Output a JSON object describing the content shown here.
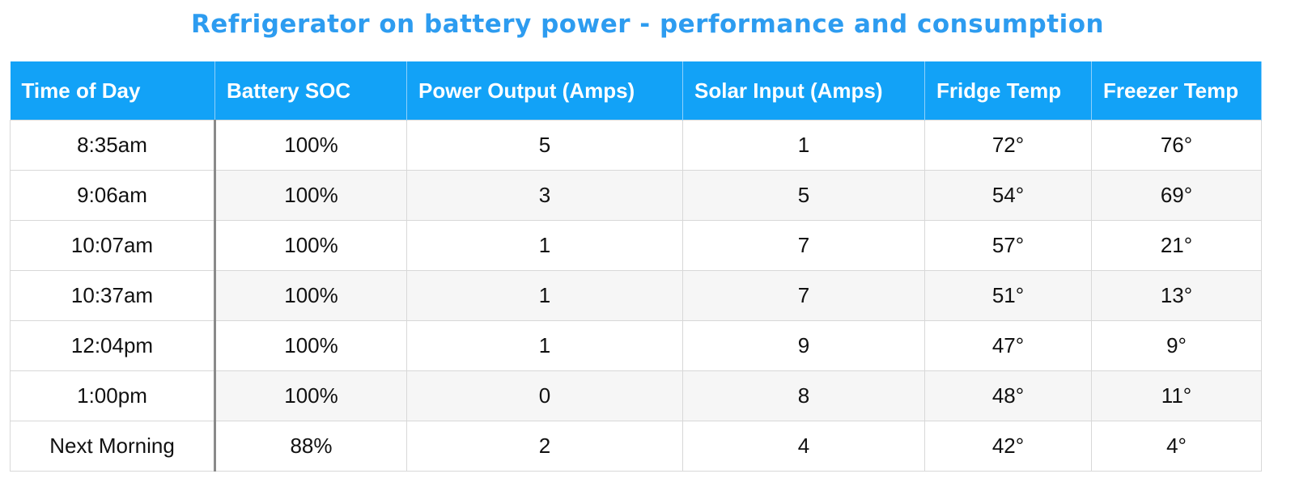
{
  "title": "Refrigerator on battery power - performance and consumption",
  "table": {
    "header": [
      "Time of Day",
      "Battery SOC",
      "Power Output (Amps)",
      "Solar Input (Amps)",
      "Fridge Temp",
      "Freezer Temp"
    ],
    "rows": [
      [
        "8:35am",
        "100%",
        "5",
        "1",
        "72°",
        "76°"
      ],
      [
        "9:06am",
        "100%",
        "3",
        "5",
        "54°",
        "69°"
      ],
      [
        "10:07am",
        "100%",
        "1",
        "7",
        "57°",
        "21°"
      ],
      [
        "10:37am",
        "100%",
        "1",
        "7",
        "51°",
        "13°"
      ],
      [
        "12:04pm",
        "100%",
        "1",
        "9",
        "47°",
        "9°"
      ],
      [
        "1:00pm",
        "100%",
        "0",
        "8",
        "48°",
        "11°"
      ],
      [
        "Next Morning",
        "88%",
        "2",
        "4",
        "42°",
        "4°"
      ]
    ]
  }
}
